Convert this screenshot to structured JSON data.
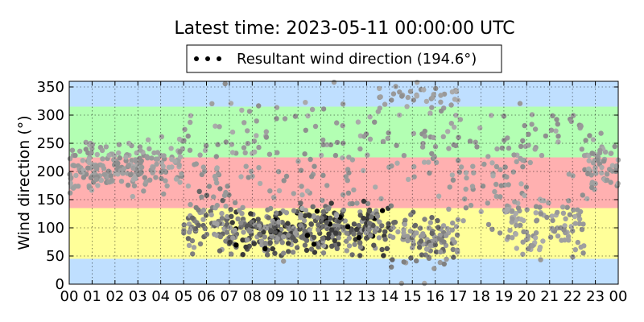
{
  "chart_data": {
    "type": "scatter",
    "title": "Latest time: 2023-05-11 00:00:00 UTC",
    "xlabel": "",
    "ylabel": "Wind direction (°)",
    "xlim": [
      0,
      24
    ],
    "ylim": [
      0,
      360
    ],
    "xtick_labels": [
      "00",
      "01",
      "02",
      "03",
      "04",
      "05",
      "06",
      "07",
      "08",
      "09",
      "10",
      "11",
      "12",
      "13",
      "14",
      "15",
      "16",
      "17",
      "18",
      "19",
      "20",
      "21",
      "22",
      "23",
      "00"
    ],
    "ytick_values": [
      0,
      50,
      100,
      150,
      200,
      250,
      300,
      350
    ],
    "grid": true,
    "legend": {
      "placement": "top-center",
      "label": "Resultant wind direction (194.6°)",
      "marker_color": "#000000"
    },
    "bands": [
      {
        "from": 0,
        "to": 45,
        "color": "#bfdfff"
      },
      {
        "from": 45,
        "to": 135,
        "color": "#ffff99"
      },
      {
        "from": 135,
        "to": 225,
        "color": "#ffb0b0"
      },
      {
        "from": 225,
        "to": 315,
        "color": "#b3ffb3"
      },
      {
        "from": 315,
        "to": 360,
        "color": "#bfdfff"
      }
    ],
    "series": [
      {
        "name": "Resultant wind direction (194.6°)",
        "description": "wind direction samples; marker shade varies from light grey to black",
        "clusters": [
          {
            "x_range": [
              0,
              3
            ],
            "y_center": 205,
            "y_spread": 35,
            "count": 150,
            "shade": "light"
          },
          {
            "x_range": [
              3,
              5
            ],
            "y_center": 215,
            "y_spread": 40,
            "count": 70,
            "shade": "light"
          },
          {
            "x_range": [
              5,
              7
            ],
            "y_center": 110,
            "y_spread": 40,
            "count": 80,
            "shade": "mixed"
          },
          {
            "x_range": [
              7,
              10
            ],
            "y_center": 95,
            "y_spread": 35,
            "count": 170,
            "shade": "dark"
          },
          {
            "x_range": [
              10,
              14
            ],
            "y_center": 100,
            "y_spread": 35,
            "count": 220,
            "shade": "dark"
          },
          {
            "x_range": [
              14,
              17
            ],
            "y_center": 80,
            "y_spread": 40,
            "count": 110,
            "shade": "mixed"
          },
          {
            "x_range": [
              5,
              17
            ],
            "y_center": 230,
            "y_spread": 90,
            "count": 180,
            "shade": "light"
          },
          {
            "x_range": [
              13.5,
              17
            ],
            "y_center": 330,
            "y_spread": 30,
            "count": 40,
            "shade": "light"
          },
          {
            "x_range": [
              17,
              20
            ],
            "y_center": 190,
            "y_spread": 80,
            "count": 60,
            "shade": "light"
          },
          {
            "x_range": [
              19,
              22.5
            ],
            "y_center": 110,
            "y_spread": 50,
            "count": 110,
            "shade": "light"
          },
          {
            "x_range": [
              19,
              22.5
            ],
            "y_center": 270,
            "y_spread": 50,
            "count": 35,
            "shade": "light"
          },
          {
            "x_range": [
              22.5,
              24
            ],
            "y_center": 210,
            "y_spread": 40,
            "count": 60,
            "shade": "light"
          }
        ]
      }
    ]
  }
}
